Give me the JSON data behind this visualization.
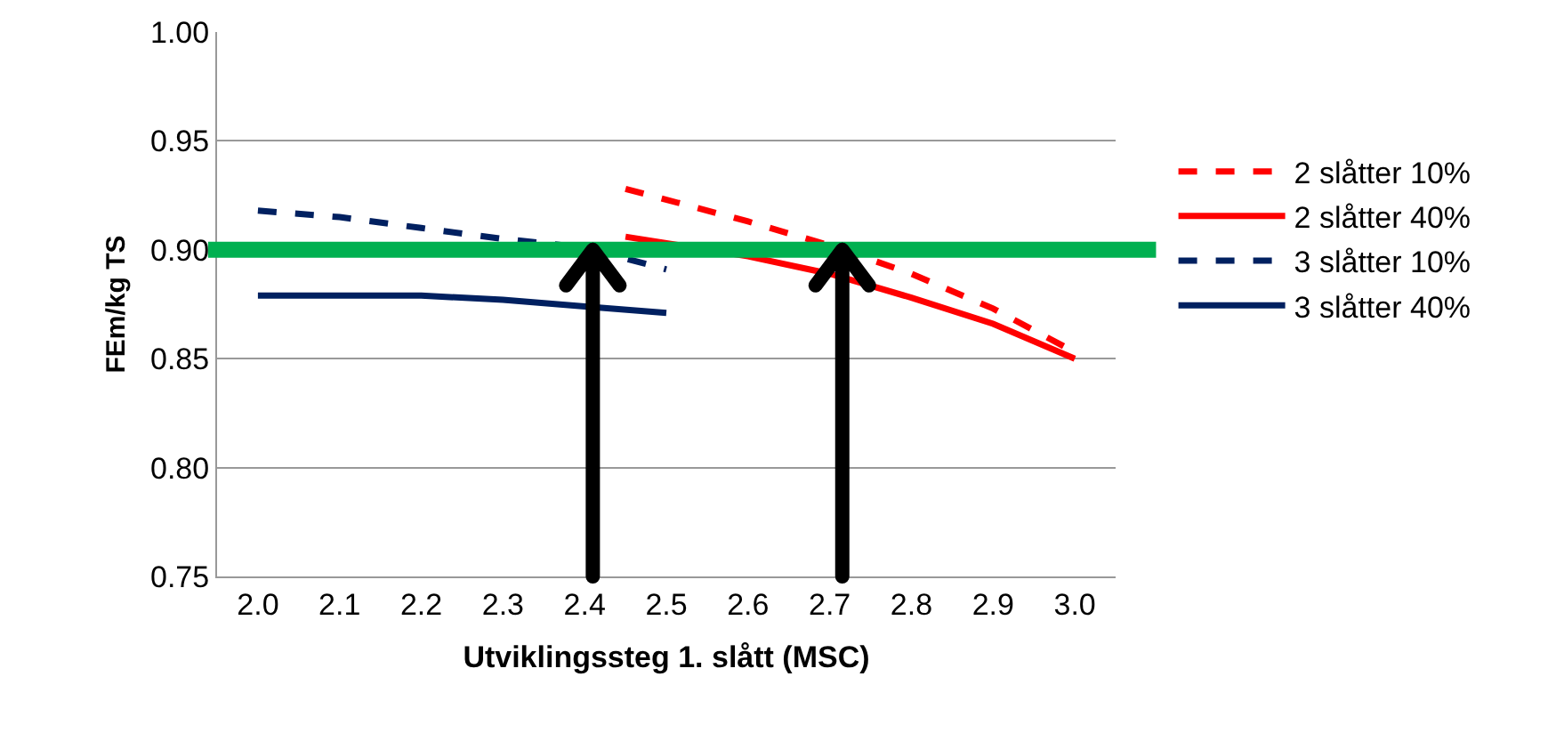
{
  "chart_data": {
    "type": "line",
    "xlabel": "Utviklingssteg 1. slått (MSC)",
    "ylabel": "FEm/kg TS",
    "xlim": [
      1.95,
      3.05
    ],
    "xticks": [
      {
        "value": 2,
        "label": "2.0"
      },
      2.1,
      2.2,
      2.3,
      2.4,
      2.5,
      2.6,
      2.7,
      2.8,
      2.9,
      {
        "value": 3,
        "label": "3.0"
      }
    ],
    "ylim": [
      0.75,
      1.0
    ],
    "yticks": [
      {
        "value": 0.75,
        "label": "0.75"
      },
      {
        "value": 0.8,
        "label": "0.80"
      },
      {
        "value": 0.85,
        "label": "0.85"
      },
      {
        "value": 0.9,
        "label": "0.90"
      },
      {
        "value": 0.95,
        "label": "0.95"
      },
      {
        "value": 1.0,
        "label": "1.00"
      }
    ],
    "grid": "y",
    "legend": "right",
    "series": [
      {
        "name": "2 slåtter 10%",
        "color": "#ff0000",
        "line_style": "dashed",
        "x": [
          2.45,
          2.6,
          2.7,
          2.8,
          2.9,
          3.0
        ],
        "values": [
          0.928,
          0.913,
          0.902,
          0.889,
          0.873,
          0.853
        ]
      },
      {
        "name": "2 slåtter 40%",
        "color": "#ff0000",
        "line_style": "solid",
        "x": [
          2.45,
          2.6,
          2.7,
          2.8,
          2.9,
          3.0
        ],
        "values": [
          0.906,
          0.897,
          0.889,
          0.878,
          0.866,
          0.85
        ]
      },
      {
        "name": "3 slåtter 10%",
        "color": "#002060",
        "line_style": "dashed",
        "x": [
          2.0,
          2.1,
          2.2,
          2.3,
          2.4,
          2.5
        ],
        "values": [
          0.918,
          0.915,
          0.91,
          0.905,
          0.901,
          0.891
        ]
      },
      {
        "name": "3 slåtter 40%",
        "color": "#002060",
        "line_style": "solid",
        "x": [
          2.0,
          2.1,
          2.2,
          2.3,
          2.4,
          2.5
        ],
        "values": [
          0.879,
          0.879,
          0.879,
          0.877,
          0.874,
          0.871
        ]
      }
    ],
    "ref_lines": [
      {
        "axis": "y",
        "value": 0.9,
        "color": "#00b050"
      }
    ]
  }
}
